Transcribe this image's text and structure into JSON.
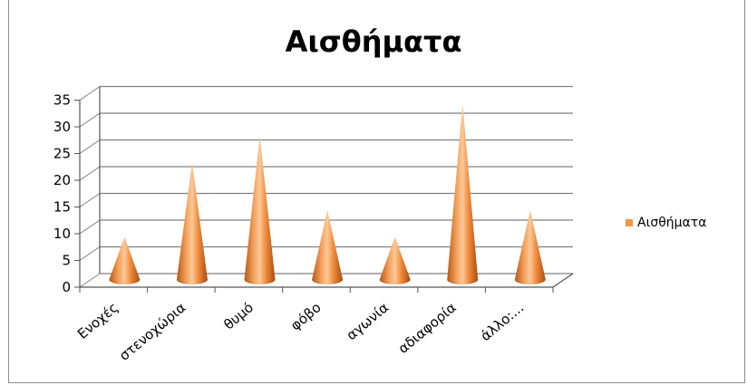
{
  "chart_data": {
    "type": "bar",
    "title": "Αισθήματα",
    "xlabel": "",
    "ylabel": "",
    "categories": [
      "Ενοχές",
      "στενοχώρια",
      "θυμό",
      "φόβο",
      "αγωνία",
      "αδιαφορία",
      "άλλο:..."
    ],
    "series": [
      {
        "name": "Αισθήματα",
        "values": [
          8,
          22,
          27,
          13,
          8,
          33,
          13
        ]
      }
    ],
    "ylim": [
      0,
      35
    ],
    "yticks": [
      "0",
      "5",
      "10",
      "15",
      "20",
      "25",
      "30",
      "35"
    ],
    "grid": true,
    "legend": "right",
    "style_3d": "cone",
    "colors": {
      "series": "#f79646",
      "grid": "#7f7f7f"
    }
  }
}
